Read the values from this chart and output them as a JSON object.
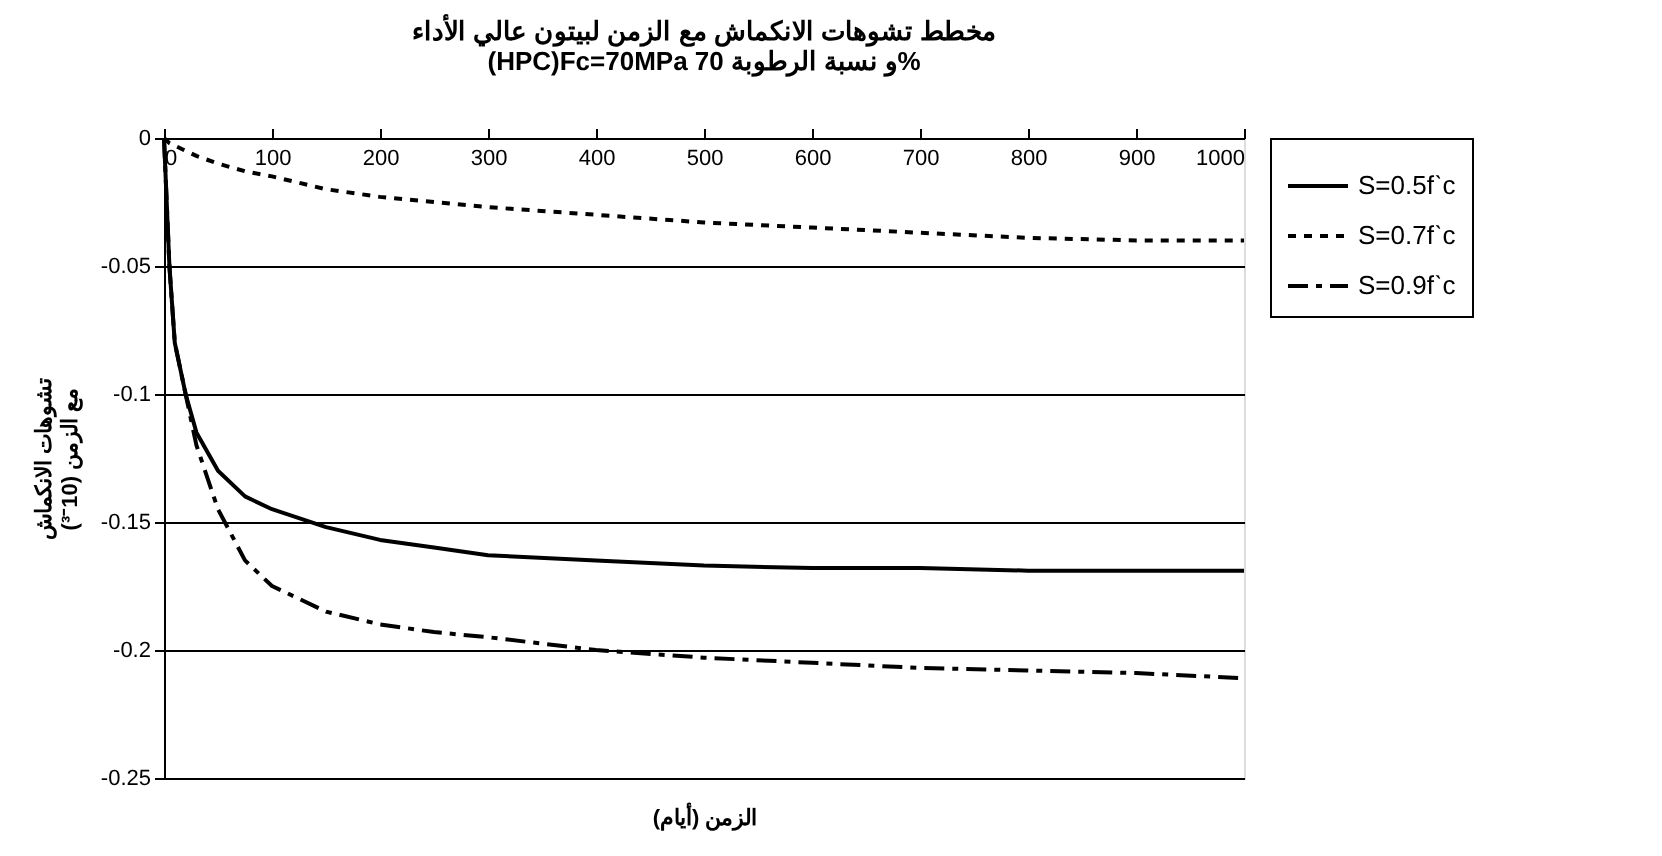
{
  "chart_data": {
    "type": "line",
    "title": [
      "مخطط تشوهات الانكماش مع الزمن لبيتون عالي الأداء",
      "(HPC)Fc=70MPa و نسبة الرطوبة 70%"
    ],
    "xlabel": "الزمن (أيام)",
    "ylabel": [
      "تشوهات الانكماش",
      "مع الزمن (10⁻³)"
    ],
    "x": [
      0,
      5,
      10,
      20,
      30,
      50,
      75,
      100,
      150,
      200,
      250,
      300,
      400,
      500,
      600,
      700,
      800,
      900,
      1000
    ],
    "series": [
      {
        "name": "S=0.5fˋc",
        "color": "#000000",
        "line_style": "solid",
        "values": [
          0,
          -0.05,
          -0.08,
          -0.1,
          -0.115,
          -0.13,
          -0.14,
          -0.145,
          -0.152,
          -0.157,
          -0.16,
          -0.163,
          -0.165,
          -0.167,
          -0.168,
          -0.168,
          -0.169,
          -0.169,
          -0.169
        ]
      },
      {
        "name": "S=0.7fˋc",
        "color": "#000000",
        "line_style": "dotted",
        "values": [
          0,
          -0.002,
          -0.003,
          -0.005,
          -0.007,
          -0.01,
          -0.013,
          -0.015,
          -0.02,
          -0.023,
          -0.025,
          -0.027,
          -0.03,
          -0.033,
          -0.035,
          -0.037,
          -0.039,
          -0.04,
          -0.04
        ]
      },
      {
        "name": "S=0.9fˋc",
        "color": "#000000",
        "line_style": "dashdot",
        "values": [
          0,
          -0.05,
          -0.08,
          -0.1,
          -0.12,
          -0.145,
          -0.165,
          -0.175,
          -0.185,
          -0.19,
          -0.193,
          -0.195,
          -0.2,
          -0.203,
          -0.205,
          -0.207,
          -0.208,
          -0.209,
          -0.211
        ]
      }
    ],
    "xlim": [
      0,
      1000
    ],
    "xticks": [
      0,
      100,
      200,
      300,
      400,
      500,
      600,
      700,
      800,
      900,
      1000
    ],
    "ylim": [
      -0.25,
      0
    ],
    "yticks": [
      -0.25,
      -0.2,
      -0.15,
      -0.1,
      -0.05,
      0
    ],
    "grid": "y",
    "legend": "right",
    "marker": "none"
  }
}
